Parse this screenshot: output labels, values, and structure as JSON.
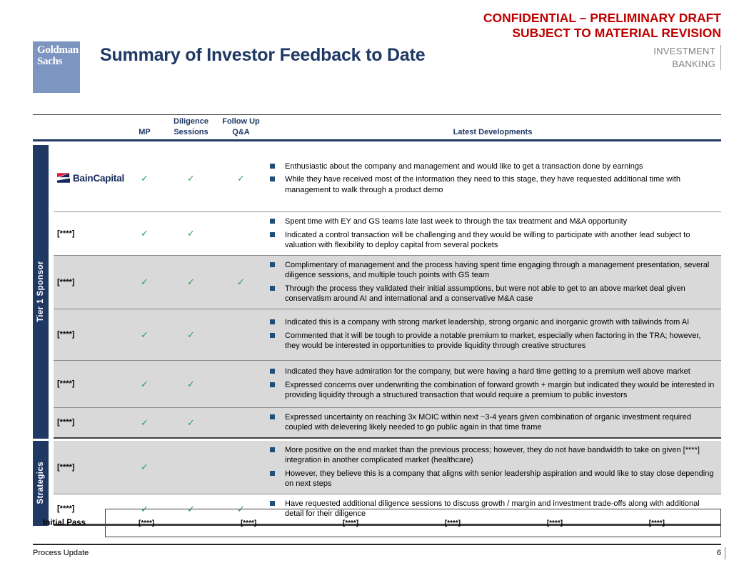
{
  "header": {
    "confidential_line1": "CONFIDENTIAL – PRELIMINARY DRAFT",
    "confidential_line2": "SUBJECT TO MATERIAL REVISION",
    "logo_line1": "Goldman",
    "logo_line2": "Sachs",
    "title": "Summary of Investor Feedback to Date",
    "division_line1": "INVESTMENT",
    "division_line2": "BANKING"
  },
  "icons": {
    "check": "✓"
  },
  "table": {
    "col_mp": "MP",
    "col_diligence": "Diligence\nSessions",
    "col_followup": "Follow Up\nQ&A",
    "col_developments": "Latest Developments",
    "groups": [
      {
        "label": "Tier 1 Sponsor",
        "rows": [
          {
            "investor": "BainCapital",
            "logo": true,
            "shaded": false,
            "checks": [
              true,
              true,
              true
            ],
            "bullets": [
              "Enthusiastic about the company and management and would like to get a transaction done by earnings",
              "While they have received most of the information they need to this stage, they have requested additional time with management to walk through a product demo"
            ]
          },
          {
            "investor": "[****]",
            "logo": false,
            "shaded": false,
            "checks": [
              true,
              true,
              false
            ],
            "bullets": [
              "Spent time with EY and GS teams late last week to through the tax treatment and M&A opportunity",
              "Indicated a control transaction will be challenging and they would be willing to participate with another lead subject to valuation with flexibility to deploy capital from several pockets"
            ]
          },
          {
            "investor": "[****]",
            "logo": false,
            "shaded": true,
            "checks": [
              true,
              true,
              true
            ],
            "bullets": [
              "Complimentary of management and the process having spent time engaging through a management presentation, several diligence sessions, and multiple touch points with GS team",
              "Through the process they validated their initial assumptions, but were not able to get to an above market deal given conservatism around AI and international and a conservative M&A case"
            ]
          },
          {
            "investor": "[****]",
            "logo": false,
            "shaded": true,
            "checks": [
              true,
              true,
              false
            ],
            "bullets": [
              "Indicated this is a company with strong market leadership, strong organic and inorganic growth with tailwinds from AI",
              "Commented that it will be tough to provide a notable premium to market, especially when factoring in the TRA; however, they would be interested in opportunities to provide liquidity through creative structures"
            ]
          },
          {
            "investor": "[****]",
            "logo": false,
            "shaded": true,
            "checks": [
              true,
              true,
              false
            ],
            "bullets": [
              "Indicated they have admiration for the company, but were having a hard time getting to a premium well above market",
              "Expressed concerns over underwriting the combination of forward growth + margin but indicated they would be interested in providing liquidity through a structured transaction that would require a premium to public investors"
            ]
          },
          {
            "investor": "[****]",
            "logo": false,
            "shaded": true,
            "checks": [
              true,
              true,
              false
            ],
            "bullets": [
              "Expressed uncertainty on reaching 3x MOIC within next ~3-4 years given combination of organic investment required coupled with delevering likely needed to go public again in that time frame"
            ]
          }
        ]
      },
      {
        "label": "Strategics",
        "rows": [
          {
            "investor": "[****]",
            "logo": false,
            "shaded": true,
            "checks": [
              true,
              false,
              false
            ],
            "bullets": [
              "More positive on the end market than the previous process; however, they do not have bandwidth to take on given [****] integration in another complicated market (healthcare)",
              "However, they believe this is a company that aligns with senior leadership aspiration and would like to stay close depending on next steps"
            ]
          },
          {
            "investor": "[****]",
            "logo": false,
            "shaded": false,
            "checks": [
              true,
              true,
              true
            ],
            "bullets": [
              "Have requested additional diligence sessions to discuss growth / margin and investment trade-offs along with additional detail for their diligence"
            ]
          }
        ]
      }
    ]
  },
  "initial_pass": {
    "label": "Initial Pass",
    "items": [
      "[****]",
      "[****]",
      "[****]",
      "[****]",
      "[****]",
      "[****]"
    ]
  },
  "footer": {
    "left": "Process Update",
    "page": "6"
  }
}
